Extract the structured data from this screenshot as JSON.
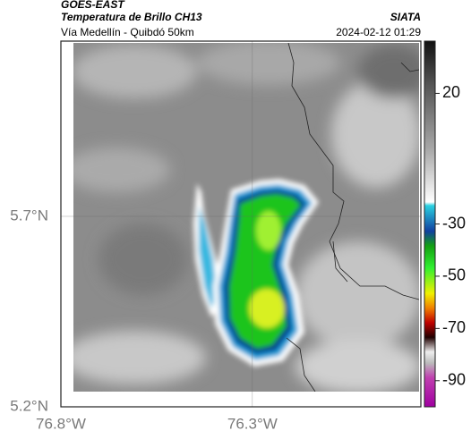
{
  "header": {
    "title": "GOES-EAST",
    "subtitle": "Temperatura de Brillo CH13",
    "region": "Vía Medellín - Quibdó 50km",
    "source": "SIATA",
    "timestamp": "2024-02-12 01:29"
  },
  "map": {
    "xlim": [
      -76.8,
      -75.86
    ],
    "ylim": [
      5.2,
      6.16
    ],
    "lon_ticks": [
      {
        "value": -76.8,
        "label": "76.8°W"
      },
      {
        "value": -76.3,
        "label": "76.3°W"
      }
    ],
    "lat_ticks": [
      {
        "value": 5.2,
        "label": "5.2°N"
      },
      {
        "value": 5.7,
        "label": "5.7°N"
      }
    ]
  },
  "colorbar": {
    "lim": [
      40,
      -100
    ],
    "ticks": [
      20,
      -30,
      -50,
      -70,
      -90
    ]
  }
}
